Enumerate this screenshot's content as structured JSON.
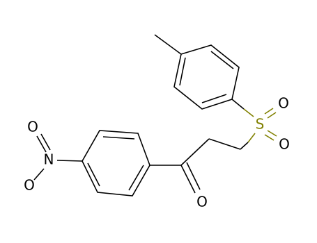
{
  "atoms": [
    {
      "label": "O"
    },
    {
      "label": "N"
    },
    {
      "label": "O"
    },
    {
      "label": "O"
    },
    {
      "label": "S"
    },
    {
      "label": "O"
    },
    {
      "label": "O"
    }
  ]
}
